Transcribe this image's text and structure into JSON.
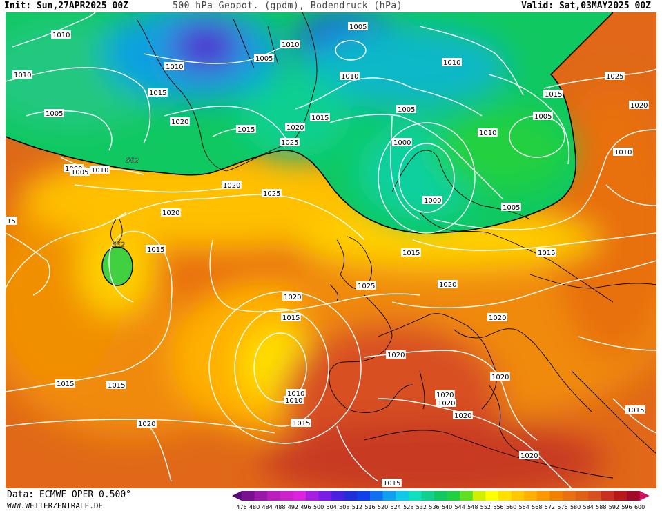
{
  "header": {
    "init": "Init: Sun,27APR2025 00Z",
    "title": "500 hPa Geopot. (gpdm), Bodendruck (hPa)",
    "valid": "Valid: Sat,03MAY2025 00Z"
  },
  "footer": {
    "data_source": "Data: ECMWF OPER 0.500°",
    "website": "WWW.WETTERZENTRALE.DE"
  },
  "colors": {
    "isobar": "#ffffff",
    "coast": "#000000",
    "gpdm_552_contour": "#000000"
  },
  "legend": {
    "values": [
      "476",
      "480",
      "484",
      "488",
      "492",
      "496",
      "500",
      "504",
      "508",
      "512",
      "516",
      "520",
      "524",
      "528",
      "532",
      "536",
      "540",
      "544",
      "548",
      "552",
      "556",
      "560",
      "564",
      "568",
      "572",
      "576",
      "580",
      "584",
      "588",
      "592",
      "596",
      "600"
    ],
    "colors": [
      "#5a0a78",
      "#7a108f",
      "#9a17a8",
      "#b81fbd",
      "#cc22cc",
      "#dd22dd",
      "#a81ee0",
      "#7a1ce8",
      "#4a20e0",
      "#2030d8",
      "#1040e8",
      "#1070f0",
      "#10a0f0",
      "#10c8e8",
      "#10e0c0",
      "#10d090",
      "#10c860",
      "#20d040",
      "#60e020",
      "#d0f000",
      "#ffff00",
      "#ffe000",
      "#ffc800",
      "#ffb000",
      "#ff9800",
      "#f08000",
      "#e87010",
      "#e06018",
      "#d85020",
      "#c83020",
      "#b81818",
      "#a00a28",
      "#d01060"
    ]
  },
  "isobar_labels": [
    {
      "text": "1010"
    },
    {
      "text": "1005"
    },
    {
      "text": "1010"
    },
    {
      "text": "1010"
    },
    {
      "text": "1005"
    },
    {
      "text": "1010"
    },
    {
      "text": "1010"
    },
    {
      "text": "1010"
    },
    {
      "text": "1015"
    },
    {
      "text": "1005"
    },
    {
      "text": "1020"
    },
    {
      "text": "1015"
    },
    {
      "text": "1020"
    },
    {
      "text": "1015"
    },
    {
      "text": "1025"
    },
    {
      "text": "1005"
    },
    {
      "text": "1010"
    },
    {
      "text": "1000"
    },
    {
      "text": "1025"
    },
    {
      "text": "1015"
    },
    {
      "text": "1020"
    },
    {
      "text": "1005"
    },
    {
      "text": "1000"
    },
    {
      "text": "1005"
    },
    {
      "text": "1010"
    },
    {
      "text": "1000"
    },
    {
      "text": "1005"
    },
    {
      "text": "1010"
    },
    {
      "text": "1020"
    },
    {
      "text": "1025"
    },
    {
      "text": "1020"
    },
    {
      "text": "1015"
    },
    {
      "text": "1010"
    },
    {
      "text": "1015"
    },
    {
      "text": "1015"
    },
    {
      "text": "1020"
    },
    {
      "text": "1025"
    },
    {
      "text": "1020"
    },
    {
      "text": "1020"
    },
    {
      "text": "1015"
    },
    {
      "text": "1010"
    },
    {
      "text": "1020"
    },
    {
      "text": "1020"
    },
    {
      "text": "1015"
    },
    {
      "text": "1015"
    },
    {
      "text": "1015"
    },
    {
      "text": "1020"
    },
    {
      "text": "1020"
    },
    {
      "text": "1020"
    },
    {
      "text": "1015"
    },
    {
      "text": "1020"
    },
    {
      "text": "1020"
    },
    {
      "text": "1015"
    },
    {
      "text": "15"
    }
  ],
  "gpdm_labels": [
    {
      "text": "552"
    },
    {
      "text": "552"
    }
  ]
}
